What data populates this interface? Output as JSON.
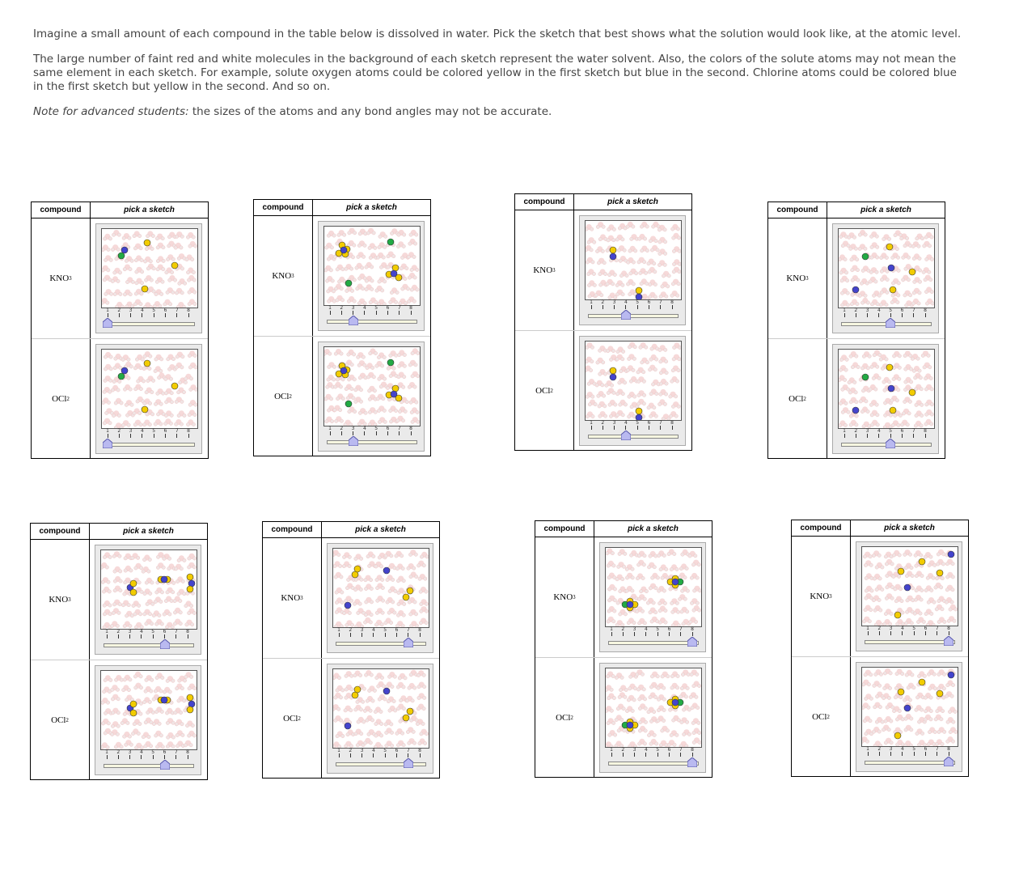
{
  "instructions": {
    "p1": "Imagine a small amount of each compound in the table below is dissolved in water. Pick the sketch that best shows what the solution would look like, at the atomic level.",
    "p2": "The large number of faint red and white molecules in the background of each sketch represent the water solvent. Also, the colors of the solute atoms may not mean the same element in each sketch. For example, solute oxygen atoms could be colored yellow in the first sketch but blue in the second. Chlorine atoms could be colored blue in the first sketch but yellow in the second. And so on.",
    "p3_em": "Note for advanced students:",
    "p3_rest": " the sizes of the atoms and any bond angles may not be accurate."
  },
  "table_header": {
    "compound": "compound",
    "pick": "pick a sketch"
  },
  "compounds": [
    {
      "formula": "KNO",
      "sub": "3"
    },
    {
      "formula": "OCl",
      "sub": "2"
    }
  ],
  "slider_ticks": [
    "1",
    "2",
    "3",
    "4",
    "5",
    "6",
    "7",
    "8"
  ],
  "colors": {
    "yellow": "#f2cc00",
    "blue": "#4444cc",
    "green": "#22aa44",
    "water": "#f2c8c8"
  },
  "panels": [
    {
      "slider": 1
    },
    {
      "slider": 3
    },
    {
      "slider": 4
    },
    {
      "slider": 5
    },
    {
      "slider": 6
    },
    {
      "slider": 7
    },
    {
      "slider": 8
    },
    {
      "slider": 8
    }
  ]
}
